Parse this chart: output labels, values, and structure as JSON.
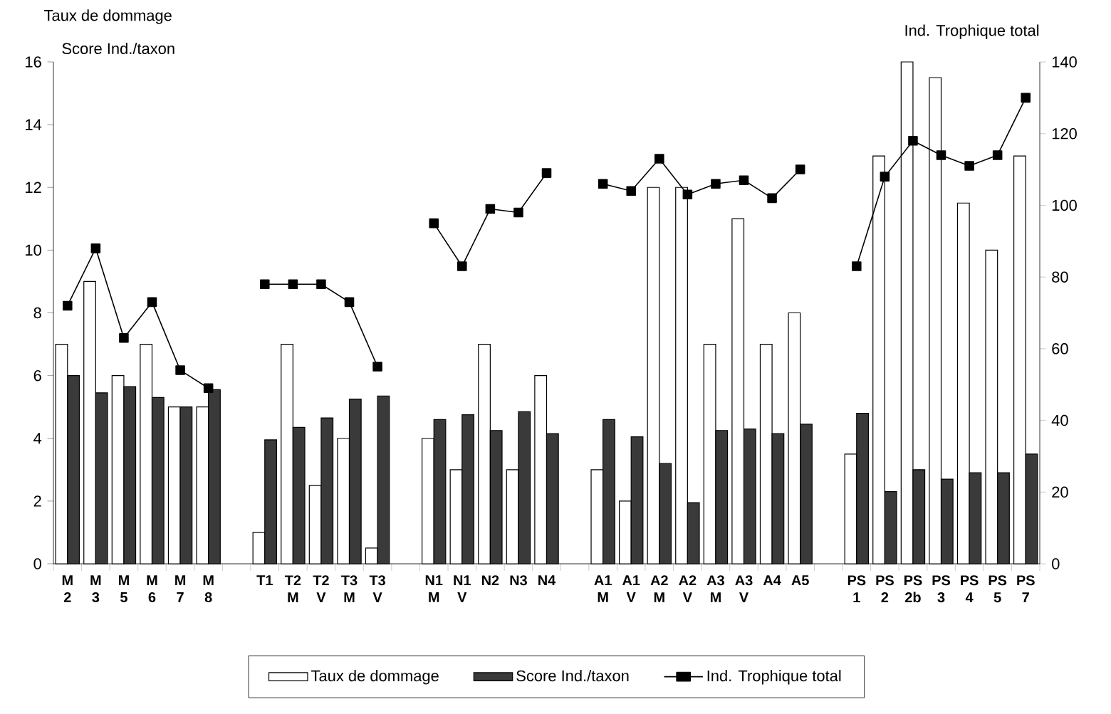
{
  "chart_data": {
    "type": "bar",
    "ylabel": "Taux de dommage",
    "y2label": "Ind. Trophique total",
    "annotations": [
      "Score Ind./taxon"
    ],
    "categories": [
      "M 2",
      "M 3",
      "M 5",
      "M 6",
      "M 7",
      "M 8",
      null,
      "T1",
      "T2 M",
      "T2 V",
      "T3 M",
      "T3 V",
      null,
      "N1 M",
      "N1 V",
      "N2",
      "N3",
      "N4",
      null,
      "A1 M",
      "A1 V",
      "A2 M",
      "A2 V",
      "A3 M",
      "A3 V",
      "A4",
      "A5",
      null,
      "PS 1",
      "PS 2",
      "PS 2b",
      "PS 3",
      "PS 4",
      "PS 5",
      "PS 7"
    ],
    "series": [
      {
        "name": "Taux de dommage",
        "color": "#ffffff",
        "values": [
          7,
          9,
          6,
          7,
          5,
          5,
          null,
          1,
          7,
          2.5,
          4,
          0.5,
          null,
          4,
          3,
          7,
          3,
          6,
          null,
          3,
          2,
          12,
          12,
          7,
          11,
          7,
          8,
          null,
          3.5,
          13,
          16,
          15.5,
          11.5,
          10,
          13
        ]
      },
      {
        "name": "Score Ind./taxon",
        "color": "#3a3a3a",
        "values": [
          6,
          5.45,
          5.65,
          5.3,
          5,
          5.55,
          null,
          3.95,
          4.35,
          4.65,
          5.25,
          5.35,
          null,
          4.6,
          4.75,
          4.25,
          4.85,
          4.15,
          null,
          4.6,
          4.05,
          3.2,
          1.95,
          4.25,
          4.3,
          4.15,
          4.45,
          null,
          4.8,
          2.3,
          3.0,
          2.7,
          2.9,
          2.9,
          3.5
        ]
      },
      {
        "name": "Ind. Trophique total",
        "type": "line",
        "axis": "y2",
        "color": "#000000",
        "values": [
          72,
          88,
          63,
          73,
          54,
          49,
          null,
          78,
          78,
          78,
          73,
          55,
          null,
          95,
          83,
          99,
          98,
          109,
          null,
          106,
          104,
          113,
          103,
          106,
          107,
          102,
          110,
          null,
          83,
          108,
          118,
          114,
          111,
          114,
          130
        ]
      }
    ],
    "ylim": [
      0,
      16
    ],
    "yticks": [
      0,
      2,
      4,
      6,
      8,
      10,
      12,
      14,
      16
    ],
    "y2lim": [
      0,
      140
    ],
    "y2ticks": [
      0,
      20,
      40,
      60,
      80,
      100,
      120,
      140
    ],
    "marker": "square",
    "line_style": "solid",
    "legend": "bottom",
    "grid": false
  }
}
